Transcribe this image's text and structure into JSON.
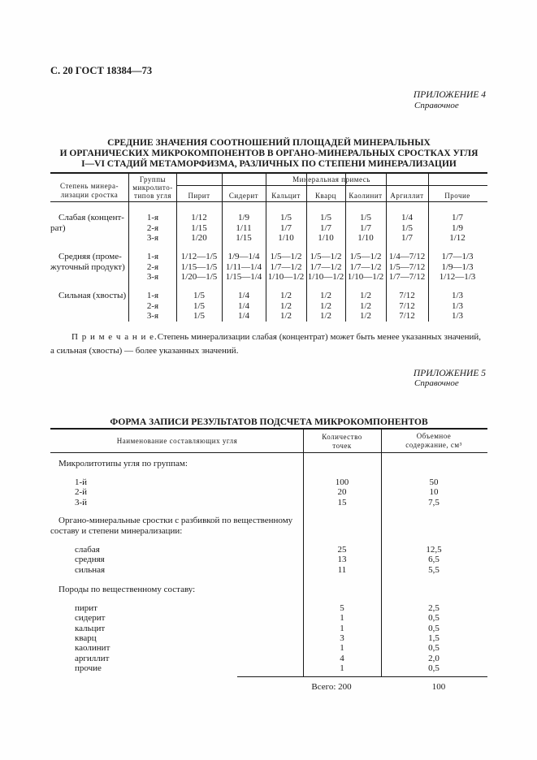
{
  "header": {
    "page_ref": "С. 20 ГОСТ 18384—73"
  },
  "appendix4": {
    "label": "ПРИЛОЖЕНИЕ 4",
    "sub": "Справочное"
  },
  "table1": {
    "title": [
      "СРЕДНИЕ ЗНАЧЕНИЯ СООТНОШЕНИЙ ПЛОЩАДЕЙ МИНЕРАЛЬНЫХ",
      "И ОРГАНИЧЕСКИХ МИКРОКОМПОНЕНТОВ В ОРГАНО-МИНЕРАЛЬНЫХ СРОСТКАХ УГЛЯ",
      "I—VI СТАДИЙ МЕТАМОРФИЗМА, РАЗЛИЧНЫХ ПО СТЕПЕНИ МИНЕРАЛИЗАЦИИ"
    ],
    "col_degree": [
      "Степень минера-",
      "лизации сростка"
    ],
    "col_groups": [
      "Группы",
      "микролито-",
      "типов угля"
    ],
    "col_mineral": "Минеральная примесь",
    "minerals": [
      "Пирит",
      "Сидерит",
      "Кальцит",
      "Кварц",
      "Каолинит",
      "Аргиллит",
      "Прочие"
    ],
    "blocks": [
      {
        "degree": [
          "Слабая (концент-",
          "рат)"
        ],
        "rows": [
          {
            "group": "1-я",
            "values": [
              "1/12",
              "1/9",
              "1/5",
              "1/5",
              "1/5",
              "1/4",
              "1/7"
            ]
          },
          {
            "group": "2-я",
            "values": [
              "1/15",
              "1/11",
              "1/7",
              "1/7",
              "1/7",
              "1/5",
              "1/9"
            ]
          },
          {
            "group": "3-я",
            "values": [
              "1/20",
              "1/15",
              "1/10",
              "1/10",
              "1/10",
              "1/7",
              "1/12"
            ]
          }
        ]
      },
      {
        "degree": [
          "Средняя (проме-",
          "жуточный продукт)"
        ],
        "rows": [
          {
            "group": "1-я",
            "values": [
              "1/12—1/5",
              "1/9—1/4",
              "1/5—1/2",
              "1/5—1/2",
              "1/5—1/2",
              "1/4—7/12",
              "1/7—1/3"
            ]
          },
          {
            "group": "2-я",
            "values": [
              "1/15—1/5",
              "1/11—1/4",
              "1/7—1/2",
              "1/7—1/2",
              "1/7—1/2",
              "1/5—7/12",
              "1/9—1/3"
            ]
          },
          {
            "group": "3-я",
            "values": [
              "1/20—1/5",
              "1/15—1/4",
              "1/10—1/2",
              "1/10—1/2",
              "1/10—1/2",
              "1/7—7/12",
              "1/12—1/3"
            ]
          }
        ]
      },
      {
        "degree": [
          "Сильная (хвосты)"
        ],
        "rows": [
          {
            "group": "1-я",
            "values": [
              "1/5",
              "1/4",
              "1/2",
              "1/2",
              "1/2",
              "7/12",
              "1/3"
            ]
          },
          {
            "group": "2-я",
            "values": [
              "1/5",
              "1/4",
              "1/2",
              "1/2",
              "1/2",
              "7/12",
              "1/3"
            ]
          },
          {
            "group": "3-я",
            "values": [
              "1/5",
              "1/4",
              "1/2",
              "1/2",
              "1/2",
              "7/12",
              "1/3"
            ]
          }
        ]
      }
    ],
    "note_label": "П р и м е ч а н и е.",
    "note": [
      " Степень минерализации слабая (концентрат) может быть менее указанных значений,",
      "а сильная (хвосты) — более указанных значений."
    ]
  },
  "appendix5": {
    "label": "ПРИЛОЖЕНИЕ 5",
    "sub": "Справочное"
  },
  "table2": {
    "title": "ФОРМА ЗАПИСИ РЕЗУЛЬТАТОВ ПОДСЧЕТА МИКРОКОМПОНЕНТОВ",
    "col_name": "Наименование составляющих угля",
    "col_count": [
      "Количество",
      "точек"
    ],
    "col_volume": [
      "Объемное",
      "содержание, см³"
    ],
    "sections": [
      {
        "title": [
          "Микролитотипы угля по группам:"
        ],
        "items": [
          {
            "name": "1-й",
            "count": "100",
            "volume": "50"
          },
          {
            "name": "2-й",
            "count": "20",
            "volume": "10"
          },
          {
            "name": "3-й",
            "count": "15",
            "volume": "7,5"
          }
        ]
      },
      {
        "title": [
          "Органо-минеральные сростки с разбивкой по вещественному",
          "составу и степени минерализации:"
        ],
        "items": [
          {
            "name": "слабая",
            "count": "25",
            "volume": "12,5"
          },
          {
            "name": "средняя",
            "count": "13",
            "volume": "6,5"
          },
          {
            "name": "сильная",
            "count": "11",
            "volume": "5,5"
          }
        ]
      },
      {
        "title": [
          "Породы по вещественному составу:"
        ],
        "items": [
          {
            "name": "пирит",
            "count": "5",
            "volume": "2,5"
          },
          {
            "name": "сидерит",
            "count": "1",
            "volume": "0,5"
          },
          {
            "name": "кальцит",
            "count": "1",
            "volume": "0,5"
          },
          {
            "name": "кварц",
            "count": "3",
            "volume": "1,5"
          },
          {
            "name": "каолинит",
            "count": "1",
            "volume": "0,5"
          },
          {
            "name": "аргиллит",
            "count": "4",
            "volume": "2,0"
          },
          {
            "name": "прочие",
            "count": "1",
            "volume": "0,5"
          }
        ]
      }
    ],
    "total_count": "Всего: 200",
    "total_volume": "100"
  }
}
